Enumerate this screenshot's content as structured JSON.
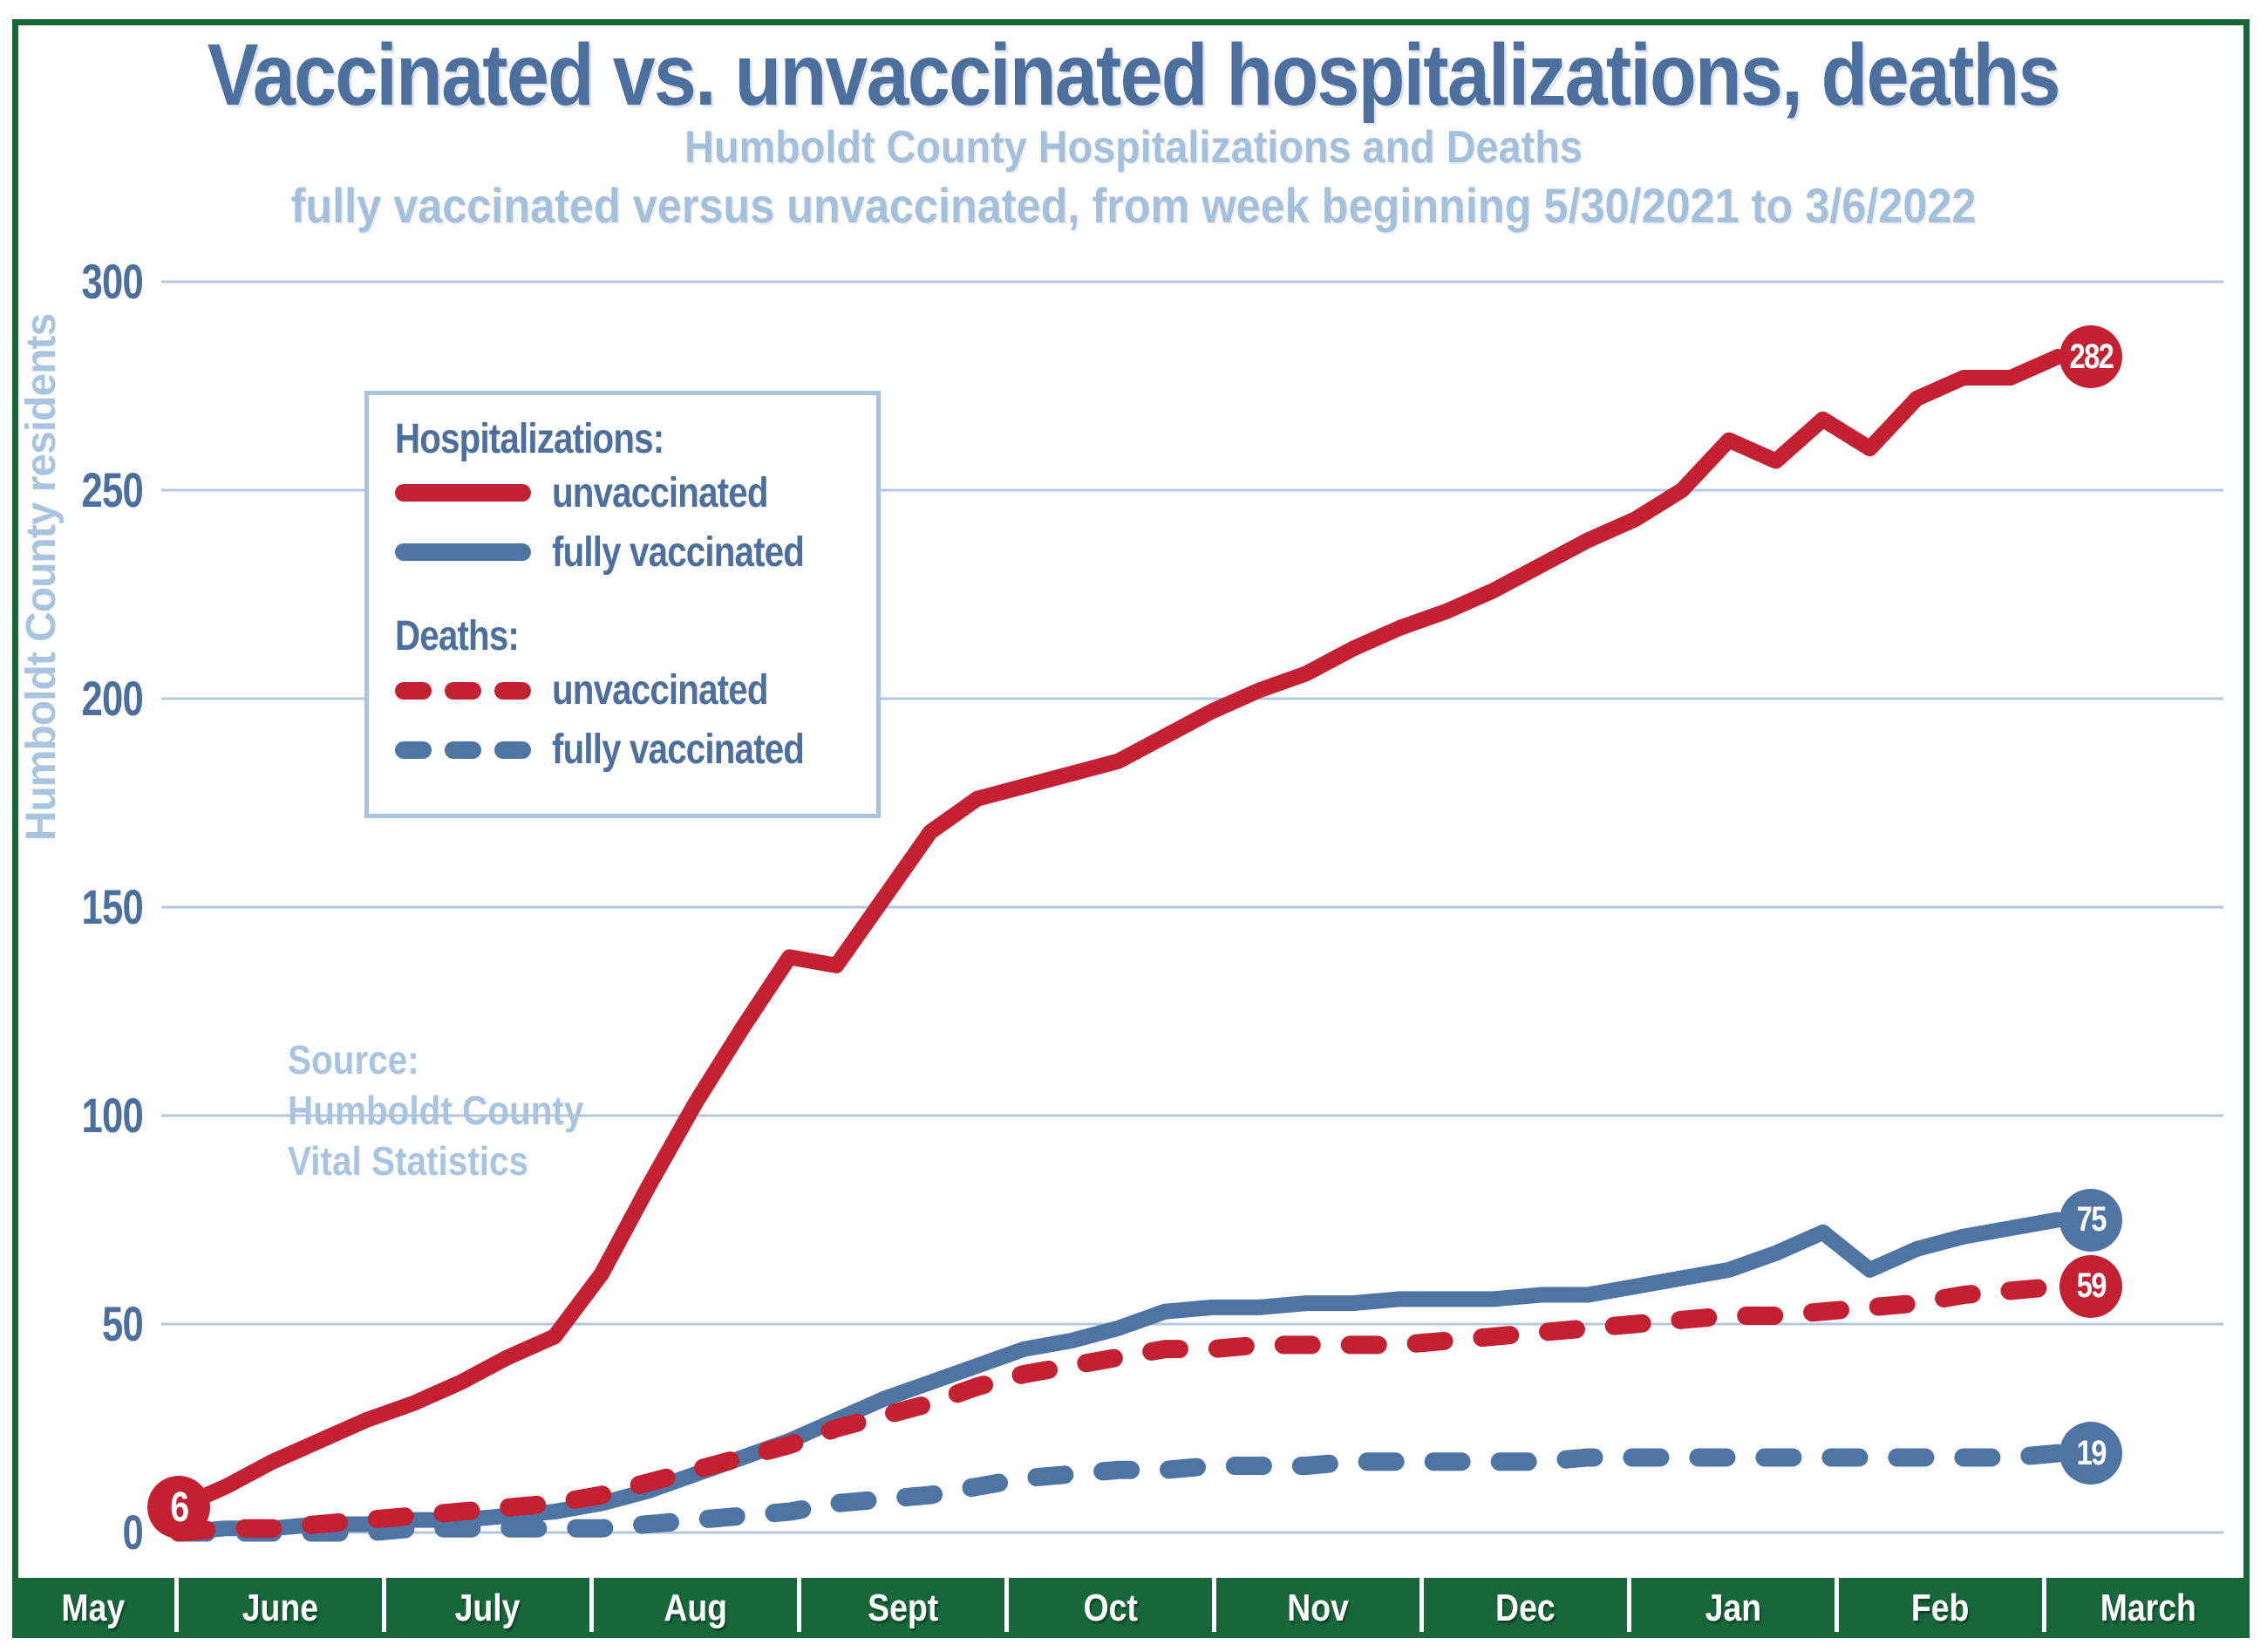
{
  "header": {
    "title": "Vaccinated vs. unvaccinated hospitalizations, deaths",
    "subtitle1": "Humboldt County Hospitalizations and Deaths",
    "subtitle2": "fully vaccinated versus unvaccinated, from week beginning 5/30/2021 to 3/6/2022"
  },
  "y_axis": {
    "label": "Humboldt County residents",
    "ticks": [
      300,
      250,
      200,
      150,
      100,
      50,
      0
    ]
  },
  "x_axis": {
    "months": [
      "May",
      "June",
      "July",
      "Aug",
      "Sept",
      "Oct",
      "Nov",
      "Dec",
      "Jan",
      "Feb",
      "March"
    ]
  },
  "legend": {
    "hospitalizations_heading": "Hospitalizations:",
    "deaths_heading": "Deaths:",
    "unvaccinated_label": "unvaccinated",
    "fully_vaccinated_label": "fully vaccinated"
  },
  "source": {
    "line1": "Source:",
    "line2": "Humboldt County",
    "line3": "Vital Statistics"
  },
  "colors": {
    "red": "#c32032",
    "blue": "#4e74a4",
    "title_blue": "#4d6f9e",
    "light_blue": "#a9c4e0",
    "gridline": "#b3c6dd",
    "green": "#17673a",
    "badge_text": "#ffffff"
  },
  "chart_data": {
    "type": "line",
    "title": "Humboldt County Hospitalizations and Deaths",
    "xlabel": "weeks from 5/30/2021 to 3/6/2022",
    "ylabel": "Humboldt County residents",
    "ylim": [
      0,
      300
    ],
    "y_ticks": [
      0,
      50,
      100,
      150,
      200,
      250,
      300
    ],
    "grid": true,
    "legend_position": "upper-left-inside",
    "x": [
      "5/30",
      "6/6",
      "6/13",
      "6/20",
      "6/27",
      "7/4",
      "7/11",
      "7/18",
      "7/25",
      "8/1",
      "8/8",
      "8/15",
      "8/22",
      "8/29",
      "9/5",
      "9/12",
      "9/19",
      "9/26",
      "10/3",
      "10/10",
      "10/17",
      "10/24",
      "10/31",
      "11/7",
      "11/14",
      "11/21",
      "11/28",
      "12/5",
      "12/12",
      "12/19",
      "12/26",
      "1/2",
      "1/9",
      "1/16",
      "1/23",
      "1/30",
      "2/6",
      "2/13",
      "2/20",
      "2/27",
      "3/6"
    ],
    "series": [
      {
        "name": "hospitalizations unvaccinated",
        "style": "solid",
        "color_key": "red",
        "start_label": "6",
        "end_label": "282",
        "values": [
          6,
          11,
          17,
          22,
          27,
          31,
          36,
          42,
          47,
          62,
          83,
          103,
          121,
          138,
          136,
          152,
          168,
          176,
          179,
          182,
          185,
          191,
          197,
          202,
          206,
          212,
          217,
          221,
          226,
          232,
          238,
          243,
          250,
          262,
          257,
          267,
          260,
          272,
          277,
          277,
          282
        ]
      },
      {
        "name": "hospitalizations fully vaccinated",
        "style": "solid",
        "color_key": "blue",
        "end_label": "75",
        "values": [
          0,
          1,
          1,
          2,
          2,
          3,
          3,
          4,
          5,
          7,
          10,
          14,
          18,
          22,
          27,
          32,
          36,
          40,
          44,
          46,
          49,
          53,
          54,
          54,
          55,
          55,
          56,
          56,
          56,
          57,
          57,
          59,
          61,
          63,
          67,
          72,
          63,
          68,
          71,
          73,
          75
        ]
      },
      {
        "name": "deaths unvaccinated",
        "style": "dashed",
        "color_key": "red",
        "end_label": "59",
        "values": [
          0,
          1,
          1,
          2,
          3,
          4,
          5,
          6,
          7,
          9,
          12,
          15,
          18,
          21,
          25,
          28,
          31,
          35,
          38,
          40,
          42,
          44,
          44,
          45,
          45,
          45,
          45,
          46,
          47,
          48,
          49,
          50,
          51,
          52,
          52,
          53,
          54,
          55,
          57,
          58,
          59
        ]
      },
      {
        "name": "deaths fully vaccinated",
        "style": "dashed",
        "color_key": "blue",
        "end_label": "19",
        "values": [
          0,
          0,
          0,
          0,
          0,
          1,
          1,
          1,
          1,
          1,
          2,
          3,
          4,
          5,
          7,
          8,
          9,
          11,
          13,
          14,
          15,
          15,
          16,
          16,
          16,
          17,
          17,
          17,
          17,
          17,
          18,
          18,
          18,
          18,
          18,
          18,
          18,
          18,
          18,
          18,
          19
        ]
      }
    ]
  }
}
